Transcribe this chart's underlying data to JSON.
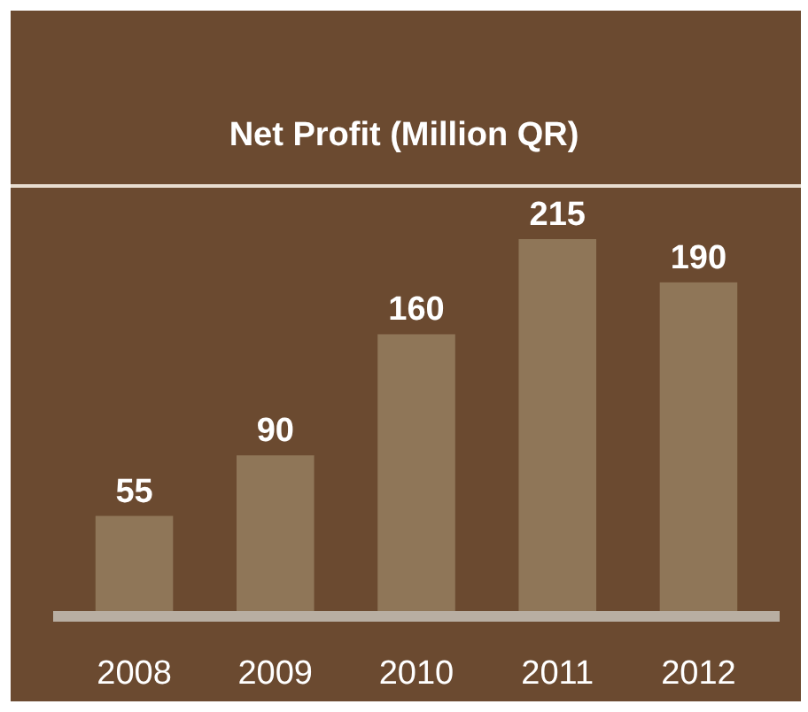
{
  "chart_data": {
    "type": "bar",
    "title": "Net Profit (Million QR)",
    "categories": [
      "2008",
      "2009",
      "2010",
      "2011",
      "2012"
    ],
    "values": [
      55,
      90,
      160,
      215,
      190
    ],
    "color": "#8f7658",
    "data_labels": true
  }
}
